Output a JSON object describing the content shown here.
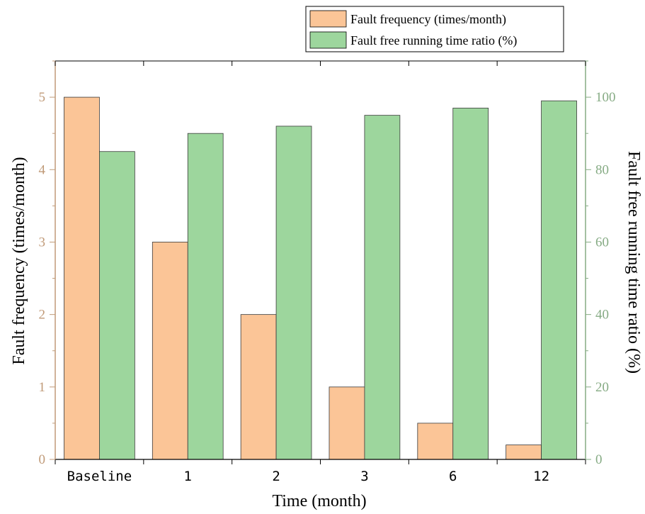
{
  "chart_data": {
    "type": "bar",
    "title": "",
    "xlabel": "Time (month)",
    "ylabel": "Fault frequency (times/month)",
    "y2label": "Fault free running time ratio (%)",
    "categories": [
      "Baseline",
      "1",
      "2",
      "3",
      "6",
      "12"
    ],
    "ylim": [
      0,
      5.5
    ],
    "y2lim": [
      0,
      110
    ],
    "yticks": [
      "0",
      "1",
      "2",
      "3",
      "4",
      "5"
    ],
    "y2ticks": [
      "0",
      "20",
      "40",
      "60",
      "80",
      "100"
    ],
    "series": [
      {
        "name": "Fault frequency (times/month)",
        "axis": "left",
        "color": "#fbc597",
        "values": [
          5,
          3,
          2,
          1,
          0.5,
          0.2
        ]
      },
      {
        "name": "Fault free running time ratio (%)",
        "axis": "right",
        "color": "#9dd69d",
        "values": [
          85,
          90,
          92,
          95,
          97,
          99
        ]
      }
    ],
    "legend_position": "top-right",
    "left_axis_color": "#c09a78",
    "right_axis_color": "#86ab84",
    "grid": false
  }
}
